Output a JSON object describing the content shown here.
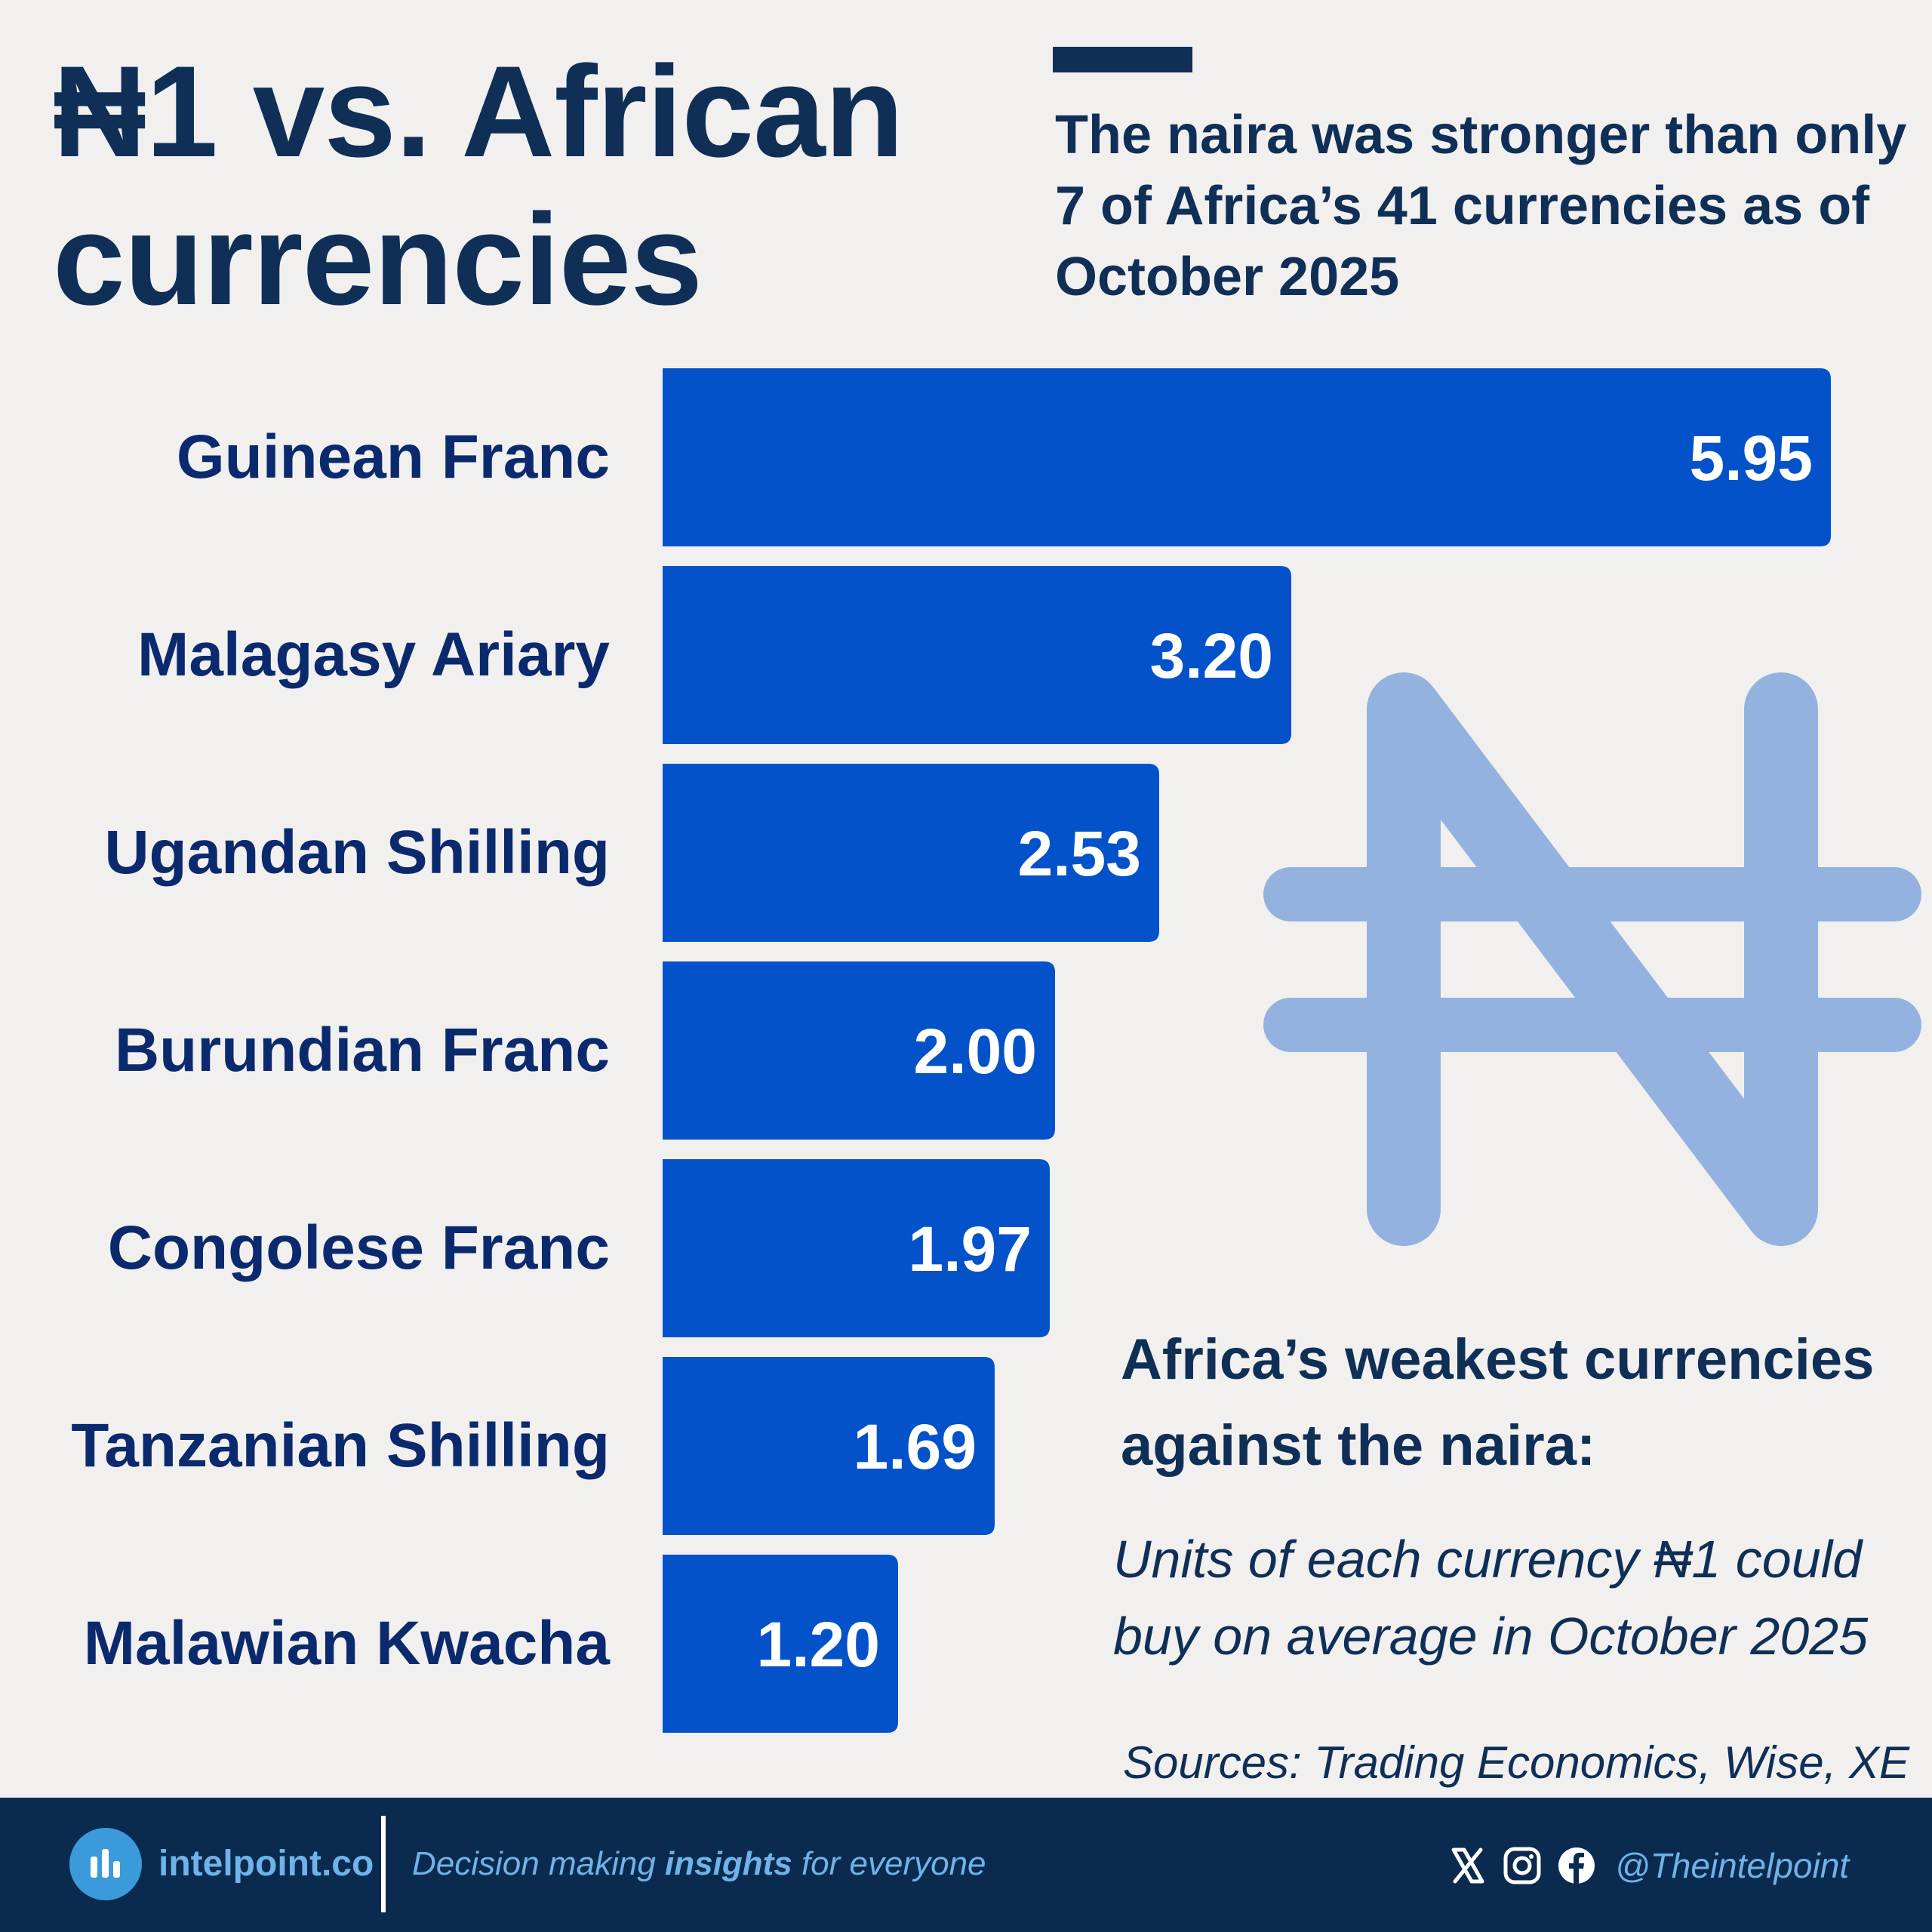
{
  "header": {
    "title_line1": "₦1 vs. African",
    "title_line2": "currencies",
    "subtitle": "The naira was stronger than only 7 of Africa’s 41 currencies as of October 2025"
  },
  "annotation": {
    "heading": "Africa’s weakest currencies against the naira:",
    "body": "Units of each currency ₦1 could buy on average in October 2025",
    "sources": "Sources: Trading Economics, Wise, XE"
  },
  "footer": {
    "brand": "intelpoint.co",
    "tagline_pre": "Decision making ",
    "tagline_bold": "insights",
    "tagline_post": " for everyone",
    "handle": "@Theintelpoint",
    "icons": [
      "x-icon",
      "instagram-icon",
      "facebook-icon"
    ]
  },
  "colors": {
    "background": "#f2f0ee",
    "bar": "#0352c9",
    "text": "#0f2f57",
    "label": "#0b2a6e",
    "watermark": "#93b2df",
    "footer": "#0b2a4f",
    "footer_accent": "#6fb3e8"
  },
  "chart_data": {
    "type": "bar",
    "orientation": "horizontal",
    "categories": [
      "Guinean Franc",
      "Malagasy Ariary",
      "Ugandan Shilling",
      "Burundian Franc",
      "Congolese Franc",
      "Tanzanian Shilling",
      "Malawian Kwacha"
    ],
    "values": [
      5.95,
      3.2,
      2.53,
      2.0,
      1.97,
      1.69,
      1.2
    ],
    "data_labels": [
      "5.95",
      "3.20",
      "2.53",
      "2.00",
      "1.97",
      "1.69",
      "1.20"
    ],
    "grid": false,
    "legend": "none"
  }
}
